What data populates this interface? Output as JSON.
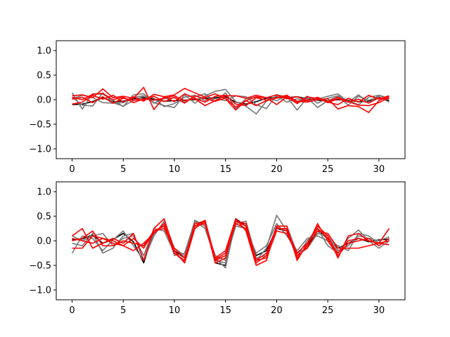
{
  "chart_data": [
    {
      "type": "line",
      "xlim": [
        -1.55,
        32.55
      ],
      "ylim": [
        -1.2,
        1.2
      ],
      "xticks": [
        0,
        5,
        10,
        15,
        20,
        25,
        30
      ],
      "xtick_labels": [
        "0",
        "5",
        "10",
        "15",
        "20",
        "25",
        "30"
      ],
      "yticks": [
        1.0,
        0.5,
        0.0,
        -0.5,
        -1.0
      ],
      "ytick_labels": [
        "1.0",
        "0.5",
        "0.0",
        "−0.5",
        "−1.0"
      ],
      "x": [
        0,
        1,
        2,
        3,
        4,
        5,
        6,
        7,
        8,
        9,
        10,
        11,
        12,
        13,
        14,
        15,
        16,
        17,
        18,
        19,
        20,
        21,
        22,
        23,
        24,
        25,
        26,
        27,
        28,
        29,
        30,
        31
      ],
      "series": [
        {
          "color": "#000000",
          "values": [
            -0.1,
            -0.09,
            -0.04,
            0.04,
            -0.04,
            -0.03,
            0.02,
            0.04,
            0.01,
            -0.03,
            -0.02,
            -0.01,
            0.0,
            0.03,
            0.04,
            0.06,
            -0.05,
            -0.09,
            -0.04,
            0.03,
            0.05,
            0.04,
            0.06,
            0.02,
            -0.01,
            -0.02,
            0.0,
            -0.01,
            -0.04,
            -0.03,
            0.04,
            -0.02
          ]
        },
        {
          "color": "#777777",
          "values": [
            0.14,
            -0.19,
            0.12,
            0.11,
            -0.01,
            -0.14,
            0.1,
            0.12,
            -0.06,
            -0.12,
            -0.16,
            0.1,
            -0.07,
            0.08,
            0.17,
            0.21,
            -0.04,
            -0.13,
            -0.29,
            -0.03,
            0.08,
            -0.05,
            0.02,
            -0.03,
            0.01,
            0.07,
            0.12,
            -0.05,
            0.1,
            -0.07,
            0.09,
            0.01
          ]
        },
        {
          "color": "#777777",
          "values": [
            0.05,
            -0.11,
            -0.13,
            0.14,
            -0.06,
            -0.13,
            -0.02,
            0.07,
            0.03,
            -0.14,
            -0.08,
            0.05,
            0.09,
            -0.02,
            0.02,
            -0.02,
            0.08,
            0.06,
            -0.1,
            -0.18,
            0.1,
            0.06,
            -0.21,
            0.04,
            -0.16,
            -0.02,
            0.06,
            -0.11,
            0.07,
            -0.01,
            0.06,
            -0.05
          ]
        },
        {
          "color": "#777777",
          "values": [
            0.02,
            0.09,
            0.05,
            -0.06,
            -0.07,
            -0.06,
            0.05,
            0.08,
            -0.07,
            0.02,
            0.04,
            -0.05,
            0.06,
            0.12,
            -0.04,
            0.14,
            -0.18,
            0.02,
            0.05,
            0.04,
            -0.02,
            0.09,
            -0.04,
            0.07,
            -0.07,
            0.03,
            0.08,
            -0.02,
            -0.1,
            0.05,
            0.09,
            0.03
          ]
        },
        {
          "color": "#ff0000",
          "values": [
            0.08,
            0.1,
            0.04,
            0.22,
            0.04,
            0.07,
            0.03,
            0.25,
            -0.2,
            0.06,
            0.1,
            0.23,
            0.14,
            0.05,
            0.12,
            0.02,
            -0.21,
            -0.02,
            0.06,
            0.04,
            0.1,
            0.02,
            0.06,
            -0.02,
            0.05,
            -0.05,
            -0.1,
            0.03,
            -0.05,
            0.09,
            0.01,
            0.08
          ]
        },
        {
          "color": "#ff0000",
          "values": [
            0.05,
            0.0,
            0.11,
            0.13,
            0.0,
            0.05,
            -0.06,
            0.02,
            -0.01,
            0.03,
            0.08,
            -0.02,
            0.02,
            -0.12,
            -0.02,
            0.08,
            0.08,
            0.03,
            0.09,
            0.04,
            -0.1,
            0.06,
            -0.08,
            0.06,
            0.02,
            -0.04,
            0.05,
            -0.04,
            -0.11,
            -0.12,
            -0.06,
            0.04
          ]
        },
        {
          "color": "#ff0000",
          "values": [
            -0.09,
            -0.05,
            0.09,
            0.01,
            0.09,
            -0.05,
            0.06,
            -0.03,
            0.11,
            0.06,
            -0.04,
            0.12,
            0.03,
            -0.05,
            0.07,
            0.09,
            -0.09,
            -0.12,
            0.04,
            -0.01,
            0.03,
            0.07,
            -0.03,
            -0.05,
            0.0,
            0.02,
            -0.19,
            -0.12,
            -0.14,
            -0.26,
            -0.02,
            0.07
          ]
        },
        {
          "color": "#ff0000",
          "values": [
            0.01,
            0.05,
            -0.06,
            0.06,
            -0.07,
            0.03,
            -0.01,
            0.0,
            0.07,
            -0.04,
            0.05,
            -0.07,
            0.08,
            0.02,
            -0.03,
            0.03,
            -0.15,
            -0.02,
            -0.12,
            -0.02,
            0.04,
            0.09,
            -0.05,
            -0.01,
            0.03,
            -0.06,
            0.02,
            -0.05,
            0.01,
            -0.07,
            0.04,
            0.02
          ]
        }
      ]
    },
    {
      "type": "line",
      "xlim": [
        -1.55,
        32.55
      ],
      "ylim": [
        -1.2,
        1.2
      ],
      "xticks": [
        0,
        5,
        10,
        15,
        20,
        25,
        30
      ],
      "xtick_labels": [
        "0",
        "5",
        "10",
        "15",
        "20",
        "25",
        "30"
      ],
      "yticks": [
        1.0,
        0.5,
        0.0,
        -0.5,
        -1.0
      ],
      "ytick_labels": [
        "1.0",
        "0.5",
        "0.0",
        "−0.5",
        "−1.0"
      ],
      "x": [
        0,
        1,
        2,
        3,
        4,
        5,
        6,
        7,
        8,
        9,
        10,
        11,
        12,
        13,
        14,
        15,
        16,
        17,
        18,
        19,
        20,
        21,
        22,
        23,
        24,
        25,
        26,
        27,
        28,
        29,
        30,
        31
      ],
      "series": [
        {
          "color": "#000000",
          "values": [
            0.02,
            0.04,
            0.12,
            -0.05,
            0.03,
            0.15,
            -0.02,
            -0.45,
            0.2,
            0.3,
            -0.2,
            -0.35,
            0.35,
            0.4,
            -0.45,
            -0.5,
            0.45,
            0.3,
            -0.3,
            -0.2,
            0.25,
            0.2,
            -0.35,
            -0.1,
            0.2,
            0.05,
            -0.15,
            -0.05,
            0.05,
            -0.02,
            0.02,
            0.03
          ]
        },
        {
          "color": "#777777",
          "values": [
            -0.25,
            0.1,
            0.05,
            -0.2,
            0.02,
            0.2,
            -0.1,
            -0.4,
            0.15,
            0.35,
            -0.3,
            -0.25,
            0.4,
            0.25,
            -0.35,
            -0.55,
            0.4,
            0.35,
            -0.4,
            -0.15,
            0.52,
            0.2,
            -0.3,
            0.0,
            0.25,
            -0.1,
            -0.25,
            0.05,
            0.22,
            0.0,
            -0.15,
            0.0
          ]
        },
        {
          "color": "#777777",
          "values": [
            0.1,
            0.0,
            0.1,
            0.15,
            -0.1,
            0.05,
            0.1,
            -0.3,
            0.25,
            0.2,
            -0.25,
            -0.4,
            0.3,
            0.35,
            -0.4,
            -0.45,
            0.35,
            0.4,
            -0.35,
            -0.3,
            0.3,
            0.3,
            -0.25,
            -0.15,
            0.15,
            0.1,
            -0.2,
            -0.1,
            0.1,
            0.05,
            0.0,
            0.08
          ]
        },
        {
          "color": "#777777",
          "values": [
            -0.05,
            -0.1,
            0.15,
            -0.25,
            -0.15,
            0.1,
            0.15,
            -0.4,
            0.1,
            0.4,
            -0.15,
            -0.3,
            0.42,
            0.3,
            -0.3,
            -0.4,
            0.3,
            0.25,
            -0.25,
            -0.1,
            0.35,
            0.1,
            -0.2,
            0.05,
            0.1,
            0.0,
            -0.1,
            -0.2,
            0.15,
            0.1,
            -0.05,
            0.0
          ]
        },
        {
          "color": "#ff0000",
          "values": [
            0.1,
            0.25,
            -0.15,
            -0.05,
            0.05,
            -0.05,
            0.15,
            -0.4,
            0.25,
            0.45,
            -0.2,
            -0.45,
            0.25,
            0.4,
            -0.35,
            -0.2,
            0.45,
            0.2,
            -0.5,
            -0.4,
            0.3,
            0.3,
            -0.4,
            -0.05,
            0.3,
            0.1,
            -0.35,
            0.1,
            0.15,
            0.0,
            -0.05,
            0.25
          ]
        },
        {
          "color": "#ff0000",
          "values": [
            -0.15,
            -0.15,
            0.1,
            0.05,
            -0.05,
            -0.1,
            -0.2,
            -0.05,
            0.15,
            0.35,
            -0.25,
            -0.4,
            0.3,
            0.35,
            -0.45,
            -0.35,
            0.4,
            0.3,
            -0.45,
            -0.3,
            0.25,
            0.25,
            -0.35,
            -0.1,
            0.35,
            0.0,
            -0.3,
            -0.05,
            0.0,
            0.05,
            -0.1,
            0.05
          ]
        },
        {
          "color": "#ff0000",
          "values": [
            0.0,
            0.05,
            0.2,
            -0.1,
            -0.1,
            0.0,
            -0.05,
            -0.1,
            0.2,
            0.3,
            -0.25,
            -0.42,
            0.35,
            0.38,
            -0.4,
            -0.3,
            0.4,
            0.35,
            -0.4,
            -0.35,
            0.2,
            0.15,
            -0.3,
            -0.15,
            0.2,
            0.15,
            -0.15,
            -0.15,
            -0.15,
            -0.1,
            -0.05,
            0.0
          ]
        },
        {
          "color": "#ff0000",
          "values": [
            0.05,
            0.0,
            -0.05,
            0.05,
            0.0,
            -0.1,
            0.05,
            -0.15,
            0.2,
            0.25,
            -0.15,
            -0.35,
            0.3,
            0.42,
            -0.38,
            -0.25,
            0.35,
            0.25,
            -0.4,
            -0.25,
            0.28,
            0.2,
            -0.25,
            -0.05,
            0.25,
            0.05,
            -0.25,
            0.0,
            0.05,
            0.0,
            -0.05,
            -0.08
          ]
        }
      ]
    }
  ]
}
